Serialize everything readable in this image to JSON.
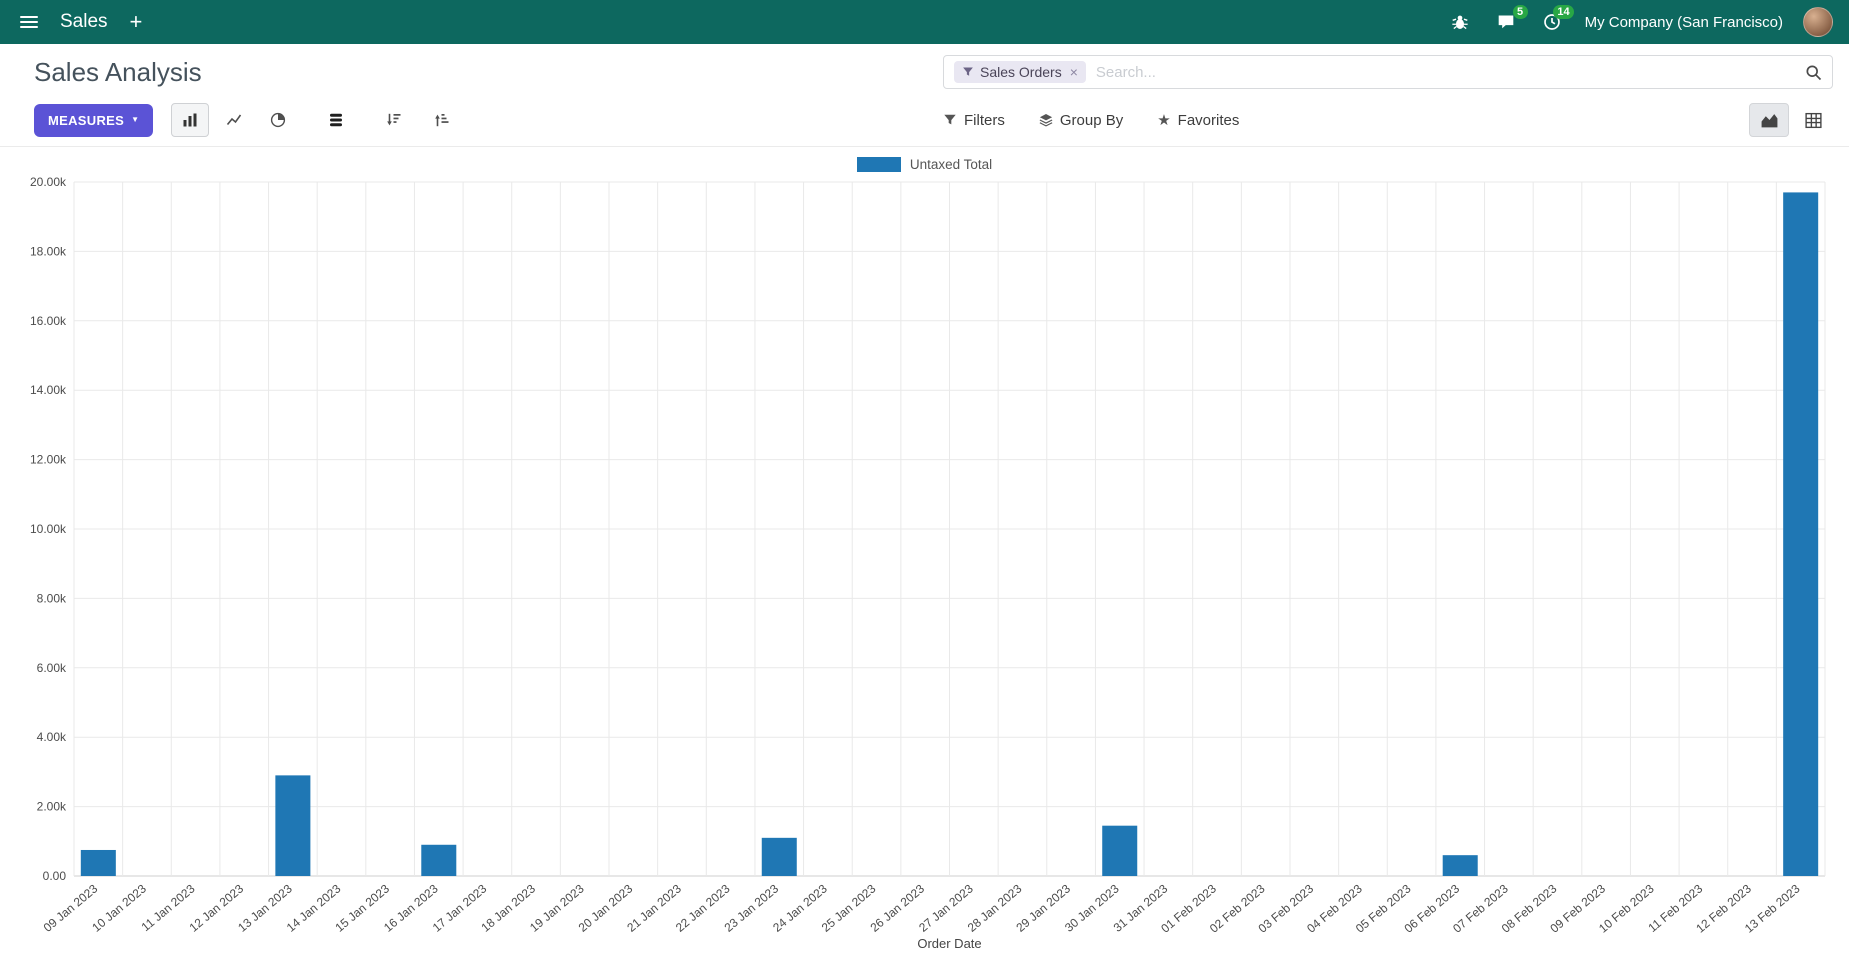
{
  "colors": {
    "navbar_bg": "#0d685f",
    "accent": "#5b53d6",
    "bar": "#1f77b4",
    "badge_green": "#28a745"
  },
  "icons": {
    "hamburger": "☰",
    "plus": "+",
    "bug": "bug",
    "messages": "speech-bubble",
    "activities": "clock",
    "search": "magnifier",
    "funnel": "funnel",
    "layers": "layers",
    "star": "★",
    "caret_down": "▼",
    "bar_chart": "bars",
    "line_chart": "line",
    "pie_chart": "pie",
    "stacked": "stack",
    "sort_desc": "arrow-down-bars",
    "sort_asc": "arrow-up-bars",
    "area_view": "area-chart",
    "pivot_view": "grid",
    "close": "×"
  },
  "navbar": {
    "app_name": "Sales",
    "plus_label": "+",
    "messages_badge": "5",
    "activities_badge": "14",
    "company": "My Company (San Francisco)"
  },
  "control_panel": {
    "title": "Sales Analysis",
    "measures_label": "Measures",
    "search": {
      "facet": "Sales Orders",
      "remove_label": "×",
      "placeholder": "Search..."
    },
    "filters_label": "Filters",
    "group_by_label": "Group By",
    "favorites_label": "Favorites"
  },
  "chart_data": {
    "type": "bar",
    "title": "",
    "xlabel": "Order Date",
    "ylabel": "",
    "ylim": [
      0,
      20000
    ],
    "ytick_step": 2000,
    "ytick_labels": [
      "0.00",
      "2.00k",
      "4.00k",
      "6.00k",
      "8.00k",
      "10.00k",
      "12.00k",
      "14.00k",
      "16.00k",
      "18.00k",
      "20.00k"
    ],
    "grid": true,
    "legend_position": "top",
    "categories": [
      "09 Jan 2023",
      "10 Jan 2023",
      "11 Jan 2023",
      "12 Jan 2023",
      "13 Jan 2023",
      "14 Jan 2023",
      "15 Jan 2023",
      "16 Jan 2023",
      "17 Jan 2023",
      "18 Jan 2023",
      "19 Jan 2023",
      "20 Jan 2023",
      "21 Jan 2023",
      "22 Jan 2023",
      "23 Jan 2023",
      "24 Jan 2023",
      "25 Jan 2023",
      "26 Jan 2023",
      "27 Jan 2023",
      "28 Jan 2023",
      "29 Jan 2023",
      "30 Jan 2023",
      "31 Jan 2023",
      "01 Feb 2023",
      "02 Feb 2023",
      "03 Feb 2023",
      "04 Feb 2023",
      "05 Feb 2023",
      "06 Feb 2023",
      "07 Feb 2023",
      "08 Feb 2023",
      "09 Feb 2023",
      "10 Feb 2023",
      "11 Feb 2023",
      "12 Feb 2023",
      "13 Feb 2023"
    ],
    "series": [
      {
        "name": "Untaxed Total",
        "color": "#1f77b4",
        "values": [
          750,
          0,
          0,
          0,
          2900,
          0,
          0,
          900,
          0,
          0,
          0,
          0,
          0,
          0,
          1100,
          0,
          0,
          0,
          0,
          0,
          0,
          1450,
          0,
          0,
          0,
          0,
          0,
          0,
          600,
          0,
          0,
          0,
          0,
          0,
          0,
          19700
        ]
      }
    ]
  }
}
